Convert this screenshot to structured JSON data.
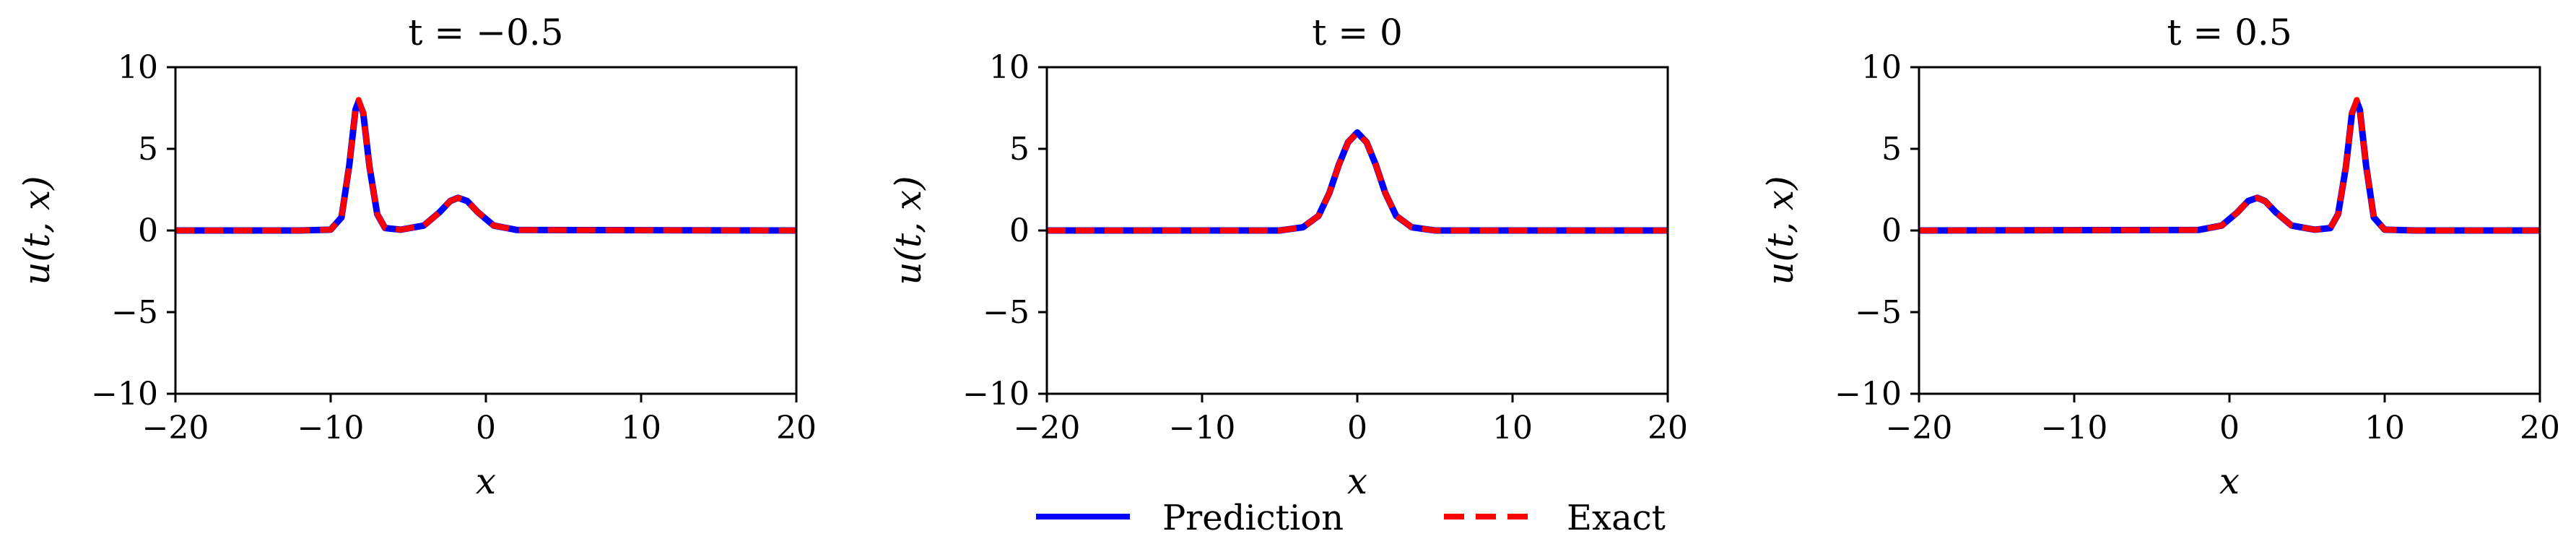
{
  "chart_data": [
    {
      "type": "line",
      "title": "t = −0.5",
      "t": -0.5,
      "xlabel": "x",
      "ylabel": "u(t, x)",
      "xlim": [
        -20,
        20
      ],
      "ylim": [
        -10,
        10
      ],
      "xticks": [
        -20,
        -10,
        0,
        10,
        20
      ],
      "yticks": [
        -10,
        -5,
        0,
        5,
        10
      ],
      "xtick_labels": [
        "−20",
        "−10",
        "0",
        "10",
        "20"
      ],
      "ytick_labels": [
        "−10",
        "−5",
        "0",
        "5",
        "10"
      ],
      "grid": false,
      "series": [
        {
          "name": "Prediction",
          "color": "#0000ff",
          "style": "solid",
          "points": [
            [
              -20,
              0
            ],
            [
              -12,
              0
            ],
            [
              -10,
              0.05
            ],
            [
              -9.3,
              0.8
            ],
            [
              -8.8,
              4.0
            ],
            [
              -8.4,
              7.4
            ],
            [
              -8.2,
              7.9
            ],
            [
              -7.9,
              7.2
            ],
            [
              -7.5,
              3.9
            ],
            [
              -7.0,
              1.0
            ],
            [
              -6.5,
              0.15
            ],
            [
              -5.5,
              0.05
            ],
            [
              -4.0,
              0.3
            ],
            [
              -3.0,
              1.1
            ],
            [
              -2.3,
              1.8
            ],
            [
              -1.8,
              2.0
            ],
            [
              -1.2,
              1.8
            ],
            [
              -0.5,
              1.1
            ],
            [
              0.5,
              0.3
            ],
            [
              2,
              0.03
            ],
            [
              20,
              0
            ]
          ]
        },
        {
          "name": "Exact",
          "color": "#ff0000",
          "style": "dashed",
          "points": [
            [
              -20,
              0
            ],
            [
              -12,
              0
            ],
            [
              -10,
              0.05
            ],
            [
              -9.3,
              0.8
            ],
            [
              -8.8,
              4.0
            ],
            [
              -8.4,
              7.4
            ],
            [
              -8.2,
              8.0
            ],
            [
              -7.9,
              7.2
            ],
            [
              -7.5,
              3.9
            ],
            [
              -7.0,
              1.0
            ],
            [
              -6.5,
              0.15
            ],
            [
              -5.5,
              0.05
            ],
            [
              -4.0,
              0.3
            ],
            [
              -3.0,
              1.1
            ],
            [
              -2.3,
              1.8
            ],
            [
              -1.8,
              2.0
            ],
            [
              -1.2,
              1.8
            ],
            [
              -0.5,
              1.1
            ],
            [
              0.5,
              0.3
            ],
            [
              2,
              0.03
            ],
            [
              20,
              0
            ]
          ]
        }
      ]
    },
    {
      "type": "line",
      "title": "t = 0",
      "t": 0,
      "xlabel": "x",
      "ylabel": "u(t, x)",
      "xlim": [
        -20,
        20
      ],
      "ylim": [
        -10,
        10
      ],
      "xticks": [
        -20,
        -10,
        0,
        10,
        20
      ],
      "yticks": [
        -10,
        -5,
        0,
        5,
        10
      ],
      "xtick_labels": [
        "−20",
        "−10",
        "0",
        "10",
        "20"
      ],
      "ytick_labels": [
        "−10",
        "−5",
        "0",
        "5",
        "10"
      ],
      "grid": false,
      "series": [
        {
          "name": "Prediction",
          "color": "#0000ff",
          "style": "solid",
          "points": [
            [
              -20,
              0
            ],
            [
              -5,
              0
            ],
            [
              -3.5,
              0.2
            ],
            [
              -2.5,
              0.9
            ],
            [
              -1.8,
              2.3
            ],
            [
              -1.2,
              4.0
            ],
            [
              -0.6,
              5.4
            ],
            [
              0,
              6.0
            ],
            [
              0.6,
              5.4
            ],
            [
              1.2,
              4.0
            ],
            [
              1.8,
              2.3
            ],
            [
              2.5,
              0.9
            ],
            [
              3.5,
              0.2
            ],
            [
              5,
              0
            ],
            [
              20,
              0
            ]
          ]
        },
        {
          "name": "Exact",
          "color": "#ff0000",
          "style": "dashed",
          "points": [
            [
              -20,
              0
            ],
            [
              -5,
              0
            ],
            [
              -3.5,
              0.2
            ],
            [
              -2.5,
              0.9
            ],
            [
              -1.8,
              2.3
            ],
            [
              -1.2,
              4.0
            ],
            [
              -0.6,
              5.4
            ],
            [
              0,
              6.0
            ],
            [
              0.6,
              5.4
            ],
            [
              1.2,
              4.0
            ],
            [
              1.8,
              2.3
            ],
            [
              2.5,
              0.9
            ],
            [
              3.5,
              0.2
            ],
            [
              5,
              0
            ],
            [
              20,
              0
            ]
          ]
        }
      ]
    },
    {
      "type": "line",
      "title": "t = 0.5",
      "t": 0.5,
      "xlabel": "x",
      "ylabel": "u(t, x)",
      "xlim": [
        -20,
        20
      ],
      "ylim": [
        -10,
        10
      ],
      "xticks": [
        -20,
        -10,
        0,
        10,
        20
      ],
      "yticks": [
        -10,
        -5,
        0,
        5,
        10
      ],
      "xtick_labels": [
        "−20",
        "−10",
        "0",
        "10",
        "20"
      ],
      "ytick_labels": [
        "−10",
        "−5",
        "0",
        "5",
        "10"
      ],
      "grid": false,
      "series": [
        {
          "name": "Prediction",
          "color": "#0000ff",
          "style": "solid",
          "points": [
            [
              -20,
              0
            ],
            [
              -2,
              0.03
            ],
            [
              -0.5,
              0.3
            ],
            [
              0.5,
              1.1
            ],
            [
              1.2,
              1.8
            ],
            [
              1.8,
              2.0
            ],
            [
              2.3,
              1.8
            ],
            [
              3.0,
              1.1
            ],
            [
              4.0,
              0.3
            ],
            [
              5.5,
              0.05
            ],
            [
              6.5,
              0.15
            ],
            [
              7.0,
              1.0
            ],
            [
              7.5,
              3.9
            ],
            [
              7.9,
              7.2
            ],
            [
              8.2,
              7.9
            ],
            [
              8.4,
              7.4
            ],
            [
              8.8,
              4.0
            ],
            [
              9.3,
              0.8
            ],
            [
              10,
              0.05
            ],
            [
              12,
              0
            ],
            [
              20,
              0
            ]
          ]
        },
        {
          "name": "Exact",
          "color": "#ff0000",
          "style": "dashed",
          "points": [
            [
              -20,
              0
            ],
            [
              -2,
              0.03
            ],
            [
              -0.5,
              0.3
            ],
            [
              0.5,
              1.1
            ],
            [
              1.2,
              1.8
            ],
            [
              1.8,
              2.0
            ],
            [
              2.3,
              1.8
            ],
            [
              3.0,
              1.1
            ],
            [
              4.0,
              0.3
            ],
            [
              5.5,
              0.05
            ],
            [
              6.5,
              0.15
            ],
            [
              7.0,
              1.0
            ],
            [
              7.5,
              3.9
            ],
            [
              7.9,
              7.2
            ],
            [
              8.2,
              8.0
            ],
            [
              8.4,
              7.4
            ],
            [
              8.8,
              4.0
            ],
            [
              9.3,
              0.8
            ],
            [
              10,
              0.05
            ],
            [
              12,
              0
            ],
            [
              20,
              0
            ]
          ]
        }
      ]
    }
  ],
  "legend": {
    "placement": "bottom-center",
    "items": [
      {
        "label": "Prediction",
        "color": "#0000ff",
        "style": "solid"
      },
      {
        "label": "Exact",
        "color": "#ff0000",
        "style": "dashed"
      }
    ]
  }
}
